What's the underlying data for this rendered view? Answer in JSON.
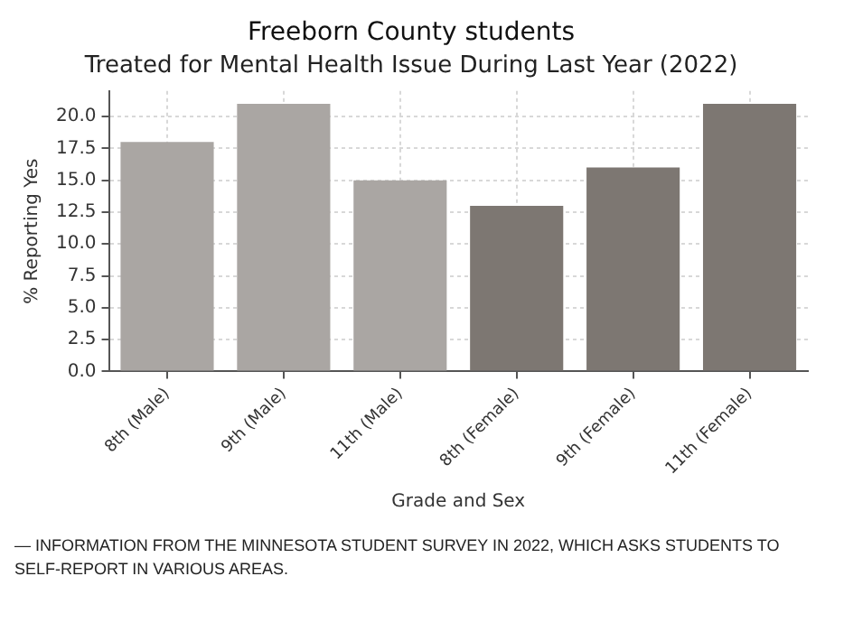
{
  "chart_data": {
    "type": "bar",
    "title": "Freeborn County students",
    "subtitle": "Treated for Mental Health Issue During Last Year (2022)",
    "xlabel": "Grade and Sex",
    "ylabel": "% Reporting Yes",
    "categories": [
      "8th (Male)",
      "9th (Male)",
      "11th (Male)",
      "8th (Female)",
      "9th (Female)",
      "11th (Female)"
    ],
    "values": [
      18,
      21,
      15,
      13,
      16,
      21
    ],
    "colors": [
      "#aaa6a3",
      "#aaa6a3",
      "#aaa6a3",
      "#7d7772",
      "#7d7772",
      "#7d7772"
    ],
    "ylim": [
      0,
      22
    ],
    "yticks": [
      {
        "value": 0,
        "label": "0.0"
      },
      2.5,
      {
        "value": 5,
        "label": "5.0"
      },
      7.5,
      {
        "value": 10,
        "label": "10.0"
      },
      12.5,
      {
        "value": 15,
        "label": "15.0"
      },
      17.5,
      {
        "value": 20,
        "label": "20.0"
      }
    ],
    "grid": true,
    "legend": false,
    "annotations": [
      "— INFORMATION FROM THE MINNESOTA STUDENT SURVEY IN 2022, WHICH ASKS STUDENTS TO SELF-REPORT IN VARIOUS AREAS."
    ]
  }
}
